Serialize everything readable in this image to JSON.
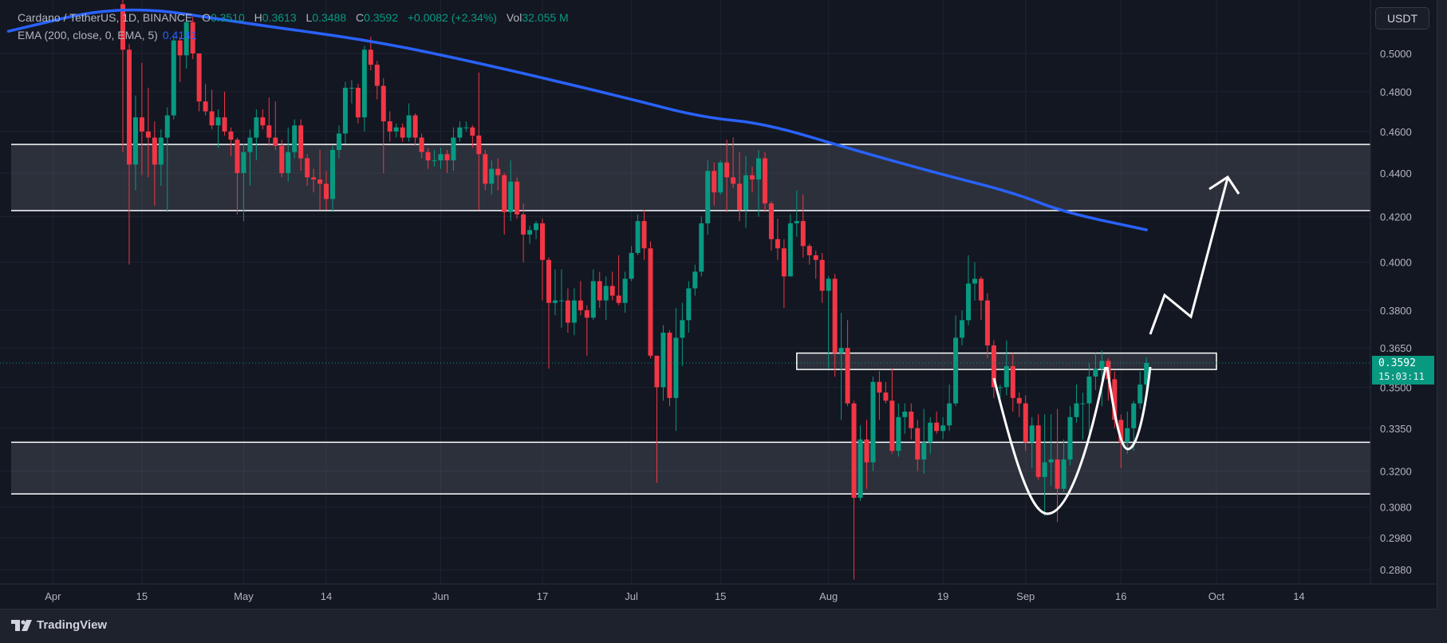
{
  "header": {
    "symbol": "Cardano / TetherUS, 1D, BINANCE",
    "open_label": "O",
    "open": "0.3510",
    "high_label": "H",
    "high": "0.3613",
    "low_label": "L",
    "low": "0.3488",
    "close_label": "C",
    "close": "0.3592",
    "change": "+0.0082 (+2.34%)",
    "vol_label": "Vol",
    "vol": "32.055 M",
    "indicator": "EMA (200, close, 0, EMA, 5)",
    "indicator_value": "0.4141"
  },
  "axis": {
    "currency_button": "USDT",
    "last_price": "0.3592",
    "countdown": "15:03:11"
  },
  "footer": {
    "brand": "TradingView"
  },
  "colors": {
    "up": "#089981",
    "down": "#f23645",
    "ema": "#2962ff",
    "background": "#131722",
    "zone": "#787b86"
  },
  "chart_data": {
    "type": "candlestick",
    "title": "Cardano / TetherUS, 1D, BINANCE",
    "scale": "log",
    "ylim": [
      0.2845,
      0.532
    ],
    "start_date": "2024-04-12",
    "interval": "1D",
    "y_ticks": [
      "0.5000",
      "0.4800",
      "0.4600",
      "0.4400",
      "0.4200",
      "0.4000",
      "0.3800",
      "0.3650",
      "0.3500",
      "0.3350",
      "0.3200",
      "0.3080",
      "0.2980",
      "0.2880"
    ],
    "x_ticks": [
      {
        "label": "Apr",
        "date": "2024-04-01"
      },
      {
        "label": "15",
        "date": "2024-04-15"
      },
      {
        "label": "May",
        "date": "2024-05-01"
      },
      {
        "label": "14",
        "date": "2024-05-14"
      },
      {
        "label": "Jun",
        "date": "2024-06-01"
      },
      {
        "label": "17",
        "date": "2024-06-17"
      },
      {
        "label": "Jul",
        "date": "2024-07-01"
      },
      {
        "label": "15",
        "date": "2024-07-15"
      },
      {
        "label": "Aug",
        "date": "2024-08-01"
      },
      {
        "label": "19",
        "date": "2024-08-19"
      },
      {
        "label": "Sep",
        "date": "2024-09-01"
      },
      {
        "label": "16",
        "date": "2024-09-16"
      },
      {
        "label": "Oct",
        "date": "2024-10-01"
      },
      {
        "label": "14",
        "date": "2024-10-14"
      }
    ],
    "ohlc_fields": [
      "open",
      "high",
      "low",
      "close"
    ],
    "candles": [
      [
        0.527,
        0.53,
        0.45,
        0.502
      ],
      [
        0.502,
        0.505,
        0.399,
        0.444
      ],
      [
        0.444,
        0.478,
        0.432,
        0.467
      ],
      [
        0.467,
        0.495,
        0.439,
        0.46
      ],
      [
        0.46,
        0.482,
        0.438,
        0.457
      ],
      [
        0.457,
        0.465,
        0.425,
        0.444
      ],
      [
        0.444,
        0.461,
        0.434,
        0.457
      ],
      [
        0.457,
        0.472,
        0.422,
        0.468
      ],
      [
        0.468,
        0.509,
        0.466,
        0.507
      ],
      [
        0.507,
        0.509,
        0.485,
        0.499
      ],
      [
        0.499,
        0.522,
        0.492,
        0.517
      ],
      [
        0.517,
        0.52,
        0.497,
        0.5
      ],
      [
        0.5,
        0.5,
        0.47,
        0.475
      ],
      [
        0.475,
        0.484,
        0.468,
        0.47
      ],
      [
        0.47,
        0.481,
        0.461,
        0.463
      ],
      [
        0.463,
        0.471,
        0.452,
        0.467
      ],
      [
        0.467,
        0.48,
        0.458,
        0.46
      ],
      [
        0.46,
        0.462,
        0.448,
        0.456
      ],
      [
        0.456,
        0.457,
        0.421,
        0.44
      ],
      [
        0.44,
        0.454,
        0.418,
        0.45
      ],
      [
        0.45,
        0.461,
        0.434,
        0.457
      ],
      [
        0.457,
        0.471,
        0.446,
        0.467
      ],
      [
        0.467,
        0.471,
        0.461,
        0.463
      ],
      [
        0.463,
        0.477,
        0.453,
        0.457
      ],
      [
        0.457,
        0.475,
        0.451,
        0.453
      ],
      [
        0.453,
        0.456,
        0.438,
        0.44
      ],
      [
        0.44,
        0.462,
        0.436,
        0.45
      ],
      [
        0.45,
        0.466,
        0.447,
        0.463
      ],
      [
        0.463,
        0.466,
        0.441,
        0.447
      ],
      [
        0.447,
        0.449,
        0.434,
        0.438
      ],
      [
        0.438,
        0.442,
        0.431,
        0.437
      ],
      [
        0.437,
        0.451,
        0.423,
        0.435
      ],
      [
        0.435,
        0.441,
        0.423,
        0.428
      ],
      [
        0.428,
        0.453,
        0.422,
        0.451
      ],
      [
        0.451,
        0.463,
        0.447,
        0.459
      ],
      [
        0.459,
        0.485,
        0.454,
        0.482
      ],
      [
        0.482,
        0.486,
        0.474,
        0.482
      ],
      [
        0.482,
        0.484,
        0.464,
        0.467
      ],
      [
        0.467,
        0.504,
        0.46,
        0.502
      ],
      [
        0.502,
        0.509,
        0.491,
        0.494
      ],
      [
        0.494,
        0.496,
        0.476,
        0.483
      ],
      [
        0.483,
        0.487,
        0.44,
        0.465
      ],
      [
        0.465,
        0.47,
        0.455,
        0.46
      ],
      [
        0.46,
        0.464,
        0.457,
        0.462
      ],
      [
        0.462,
        0.464,
        0.455,
        0.457
      ],
      [
        0.457,
        0.474,
        0.455,
        0.468
      ],
      [
        0.468,
        0.469,
        0.453,
        0.457
      ],
      [
        0.457,
        0.459,
        0.447,
        0.45
      ],
      [
        0.45,
        0.452,
        0.442,
        0.446
      ],
      [
        0.446,
        0.451,
        0.443,
        0.446
      ],
      [
        0.446,
        0.452,
        0.442,
        0.449
      ],
      [
        0.449,
        0.451,
        0.44,
        0.446
      ],
      [
        0.446,
        0.462,
        0.441,
        0.457
      ],
      [
        0.457,
        0.465,
        0.455,
        0.462
      ],
      [
        0.462,
        0.465,
        0.46,
        0.462
      ],
      [
        0.462,
        0.463,
        0.452,
        0.458
      ],
      [
        0.458,
        0.49,
        0.423,
        0.449
      ],
      [
        0.449,
        0.451,
        0.432,
        0.435
      ],
      [
        0.435,
        0.446,
        0.43,
        0.442
      ],
      [
        0.442,
        0.447,
        0.432,
        0.439
      ],
      [
        0.439,
        0.44,
        0.412,
        0.422
      ],
      [
        0.422,
        0.446,
        0.418,
        0.436
      ],
      [
        0.436,
        0.438,
        0.419,
        0.421
      ],
      [
        0.421,
        0.426,
        0.4,
        0.412
      ],
      [
        0.412,
        0.416,
        0.408,
        0.414
      ],
      [
        0.414,
        0.418,
        0.41,
        0.417
      ],
      [
        0.417,
        0.419,
        0.384,
        0.401
      ],
      [
        0.401,
        0.402,
        0.357,
        0.383
      ],
      [
        0.383,
        0.397,
        0.378,
        0.384
      ],
      [
        0.384,
        0.397,
        0.373,
        0.384
      ],
      [
        0.384,
        0.389,
        0.371,
        0.375
      ],
      [
        0.375,
        0.389,
        0.37,
        0.384
      ],
      [
        0.384,
        0.392,
        0.378,
        0.38
      ],
      [
        0.38,
        0.382,
        0.362,
        0.377
      ],
      [
        0.377,
        0.397,
        0.376,
        0.392
      ],
      [
        0.392,
        0.396,
        0.381,
        0.384
      ],
      [
        0.384,
        0.394,
        0.376,
        0.39
      ],
      [
        0.39,
        0.396,
        0.384,
        0.386
      ],
      [
        0.386,
        0.403,
        0.382,
        0.383
      ],
      [
        0.383,
        0.396,
        0.379,
        0.393
      ],
      [
        0.393,
        0.407,
        0.392,
        0.404
      ],
      [
        0.404,
        0.421,
        0.403,
        0.418
      ],
      [
        0.418,
        0.423,
        0.401,
        0.406
      ],
      [
        0.406,
        0.409,
        0.361,
        0.362
      ],
      [
        0.362,
        0.362,
        0.316,
        0.35
      ],
      [
        0.35,
        0.374,
        0.345,
        0.371
      ],
      [
        0.371,
        0.372,
        0.343,
        0.346
      ],
      [
        0.346,
        0.381,
        0.334,
        0.369
      ],
      [
        0.369,
        0.383,
        0.358,
        0.376
      ],
      [
        0.376,
        0.392,
        0.371,
        0.389
      ],
      [
        0.389,
        0.399,
        0.386,
        0.396
      ],
      [
        0.396,
        0.42,
        0.394,
        0.417
      ],
      [
        0.417,
        0.446,
        0.412,
        0.441
      ],
      [
        0.441,
        0.445,
        0.425,
        0.431
      ],
      [
        0.431,
        0.446,
        0.43,
        0.445
      ],
      [
        0.445,
        0.456,
        0.422,
        0.438
      ],
      [
        0.438,
        0.457,
        0.433,
        0.435
      ],
      [
        0.435,
        0.45,
        0.418,
        0.423
      ],
      [
        0.423,
        0.448,
        0.415,
        0.439
      ],
      [
        0.439,
        0.443,
        0.431,
        0.437
      ],
      [
        0.437,
        0.451,
        0.42,
        0.447
      ],
      [
        0.447,
        0.45,
        0.422,
        0.426
      ],
      [
        0.426,
        0.427,
        0.405,
        0.41
      ],
      [
        0.41,
        0.419,
        0.401,
        0.406
      ],
      [
        0.406,
        0.41,
        0.381,
        0.394
      ],
      [
        0.394,
        0.421,
        0.394,
        0.417
      ],
      [
        0.417,
        0.432,
        0.411,
        0.418
      ],
      [
        0.418,
        0.43,
        0.402,
        0.407
      ],
      [
        0.407,
        0.408,
        0.399,
        0.403
      ],
      [
        0.403,
        0.405,
        0.393,
        0.401
      ],
      [
        0.401,
        0.404,
        0.383,
        0.388
      ],
      [
        0.388,
        0.394,
        0.357,
        0.393
      ],
      [
        0.393,
        0.395,
        0.354,
        0.363
      ],
      [
        0.363,
        0.379,
        0.338,
        0.365
      ],
      [
        0.365,
        0.376,
        0.343,
        0.344
      ],
      [
        0.344,
        0.345,
        0.285,
        0.311
      ],
      [
        0.311,
        0.336,
        0.31,
        0.331
      ],
      [
        0.331,
        0.338,
        0.314,
        0.323
      ],
      [
        0.323,
        0.354,
        0.32,
        0.352
      ],
      [
        0.352,
        0.356,
        0.338,
        0.348
      ],
      [
        0.348,
        0.352,
        0.344,
        0.345
      ],
      [
        0.345,
        0.357,
        0.326,
        0.327
      ],
      [
        0.327,
        0.344,
        0.325,
        0.339
      ],
      [
        0.339,
        0.344,
        0.333,
        0.341
      ],
      [
        0.341,
        0.344,
        0.331,
        0.335
      ],
      [
        0.335,
        0.338,
        0.32,
        0.324
      ],
      [
        0.324,
        0.342,
        0.319,
        0.33
      ],
      [
        0.33,
        0.339,
        0.326,
        0.337
      ],
      [
        0.337,
        0.341,
        0.333,
        0.334
      ],
      [
        0.334,
        0.339,
        0.331,
        0.336
      ],
      [
        0.336,
        0.351,
        0.334,
        0.344
      ],
      [
        0.344,
        0.378,
        0.343,
        0.369
      ],
      [
        0.369,
        0.38,
        0.366,
        0.376
      ],
      [
        0.376,
        0.403,
        0.374,
        0.391
      ],
      [
        0.391,
        0.4,
        0.384,
        0.393
      ],
      [
        0.393,
        0.394,
        0.376,
        0.384
      ],
      [
        0.384,
        0.387,
        0.361,
        0.366
      ],
      [
        0.366,
        0.368,
        0.346,
        0.35
      ],
      [
        0.35,
        0.351,
        0.346,
        0.35
      ],
      [
        0.35,
        0.368,
        0.347,
        0.358
      ],
      [
        0.358,
        0.363,
        0.341,
        0.346
      ],
      [
        0.346,
        0.348,
        0.339,
        0.344
      ],
      [
        0.344,
        0.347,
        0.327,
        0.33
      ],
      [
        0.33,
        0.339,
        0.321,
        0.336
      ],
      [
        0.336,
        0.34,
        0.317,
        0.318
      ],
      [
        0.318,
        0.34,
        0.305,
        0.323
      ],
      [
        0.323,
        0.34,
        0.315,
        0.324
      ],
      [
        0.324,
        0.342,
        0.303,
        0.314
      ],
      [
        0.314,
        0.331,
        0.313,
        0.324
      ],
      [
        0.324,
        0.343,
        0.322,
        0.339
      ],
      [
        0.339,
        0.351,
        0.337,
        0.344
      ],
      [
        0.344,
        0.348,
        0.331,
        0.344
      ],
      [
        0.344,
        0.359,
        0.331,
        0.354
      ],
      [
        0.354,
        0.363,
        0.349,
        0.357
      ],
      [
        0.357,
        0.364,
        0.343,
        0.36
      ],
      [
        0.36,
        0.361,
        0.345,
        0.353
      ],
      [
        0.353,
        0.356,
        0.335,
        0.338
      ],
      [
        0.338,
        0.34,
        0.321,
        0.33
      ],
      [
        0.33,
        0.341,
        0.326,
        0.335
      ],
      [
        0.335,
        0.345,
        0.327,
        0.344
      ],
      [
        0.344,
        0.356,
        0.342,
        0.351
      ],
      [
        0.351,
        0.3613,
        0.3488,
        0.3592
      ]
    ],
    "ema": {
      "name": "EMA (200, close, 0, EMA, 5)",
      "points_day_offset_value": [
        [
          -18,
          0.512
        ],
        [
          0,
          0.527
        ],
        [
          20,
          0.516
        ],
        [
          39,
          0.507
        ],
        [
          56,
          0.495
        ],
        [
          79,
          0.477
        ],
        [
          91,
          0.467
        ],
        [
          101,
          0.464
        ],
        [
          115,
          0.451
        ],
        [
          128,
          0.44
        ],
        [
          140,
          0.431
        ],
        [
          148,
          0.422
        ],
        [
          161,
          0.4141
        ]
      ]
    },
    "zones": [
      {
        "name": "resistance-zone",
        "top": 0.4537,
        "bottom": 0.4227
      },
      {
        "name": "support-zone",
        "top": 0.33,
        "bottom": 0.3123
      },
      {
        "name": "neckline-box",
        "top": 0.363,
        "bottom": 0.3567
      }
    ],
    "last_price": 0.3592,
    "annotations": [
      "cup-and-handle curve",
      "projected upward arrow"
    ]
  }
}
